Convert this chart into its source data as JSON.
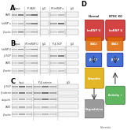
{
  "bg_color": "#f0f0f0",
  "panel_bg": "#e8e8e8",
  "white": "#ffffff",
  "dark": "#222222",
  "title_fontsize": 4.5,
  "label_fontsize": 3.2,
  "panel_labels": [
    "A",
    "B",
    "C",
    "D"
  ],
  "panel_label_fontsize": 6,
  "blot_color_dark": "#555555",
  "blot_color_mid": "#888888",
  "blot_color_light": "#bbbbbb",
  "blot_color_very_light": "#dddddd",
  "red_color": "#cc2222",
  "blue_color": "#2255cc",
  "orange_color": "#dd6600",
  "arrow_color": "#333333",
  "section_headers_A": [
    "Input",
    "IP-SAK3",
    "IgG",
    "IP-hnRNP u",
    "IgG"
  ],
  "section_headers_B": [
    "Input",
    "IP-hnRNP U",
    "IgG",
    "IP-β-TrCP",
    "IgG"
  ],
  "section_headers_C": [
    "Input",
    "IP-β-catenin",
    "IgG"
  ],
  "row_labels_A": [
    "SAK3",
    "hnRNP u",
    "β-actin"
  ],
  "row_labels_B": [
    "hnRNP U",
    "β-TrCP",
    "SAK3",
    "β-actin"
  ],
  "row_labels_C": [
    "β-TrCP",
    "β-catenin",
    "ubiquitin",
    "SAK3",
    "β-actin"
  ]
}
